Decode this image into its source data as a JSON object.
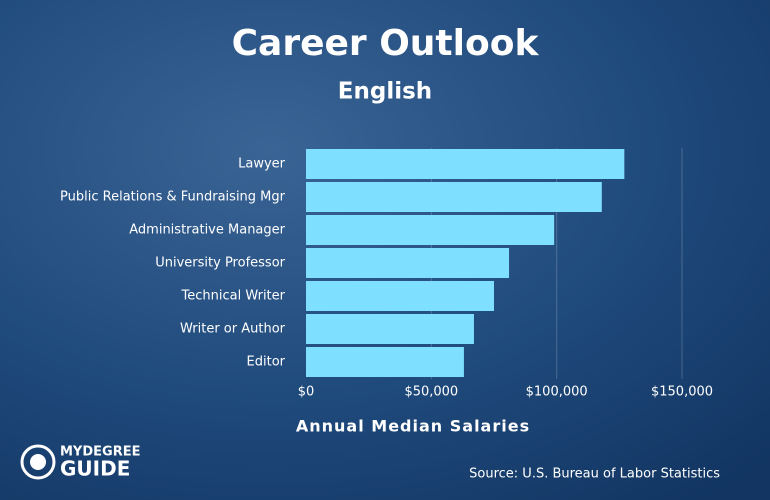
{
  "chart_data": {
    "type": "barh",
    "title": "Career Outlook",
    "subtitle": "English",
    "categories": [
      "Lawyer",
      "Public Relations & Fundraising Mgr",
      "Administrative Manager",
      "University Professor",
      "Technical Writer",
      "Writer or Author",
      "Editor"
    ],
    "values": [
      127000,
      118000,
      99000,
      81000,
      75000,
      67000,
      63000
    ],
    "color": "#7fdfff",
    "xlim": [
      0,
      150000
    ],
    "xticks": [
      {
        "value": 0,
        "label": "$0"
      },
      {
        "value": 50000,
        "label": "$50,000"
      },
      {
        "value": 100000,
        "label": "$100,000"
      },
      {
        "value": 150000,
        "label": "$150,000"
      }
    ],
    "grid": true,
    "xlabel": "Annual Median Salaries",
    "source": "Source: U.S. Bureau of Labor Statistics"
  },
  "logo": {
    "top": "MYDEGREE",
    "bottom": "GUIDE"
  }
}
